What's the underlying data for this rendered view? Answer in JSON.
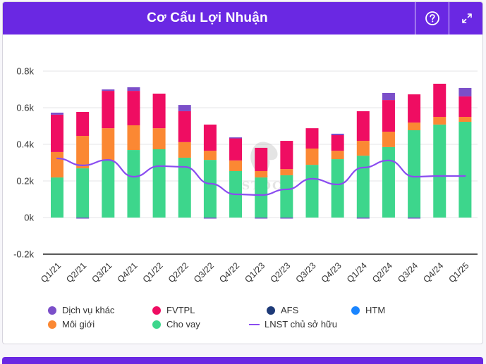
{
  "header": {
    "title": "Cơ Cấu Lợi Nhuận",
    "help_icon": "question-circle-icon",
    "expand_icon": "expand-arrows-icon"
  },
  "watermark": "SSTOCK",
  "chart_data": {
    "type": "bar",
    "stacked": true,
    "title": "Cơ Cấu Lợi Nhuận",
    "xlabel": "",
    "ylabel": "",
    "ylim": [
      -0.2,
      0.8
    ],
    "y_unit": "k",
    "yticks": [
      "-0.2k",
      "0k",
      "0.2k",
      "0.4k",
      "0.6k",
      "0.8k"
    ],
    "ytick_values": [
      -0.2,
      0,
      0.2,
      0.4,
      0.6,
      0.8
    ],
    "grid": true,
    "legend_position": "bottom",
    "categories": [
      "Q1/21",
      "Q2/21",
      "Q3/21",
      "Q4/21",
      "Q1/22",
      "Q2/22",
      "Q3/22",
      "Q4/22",
      "Q1/23",
      "Q2/23",
      "Q3/23",
      "Q4/23",
      "Q1/24",
      "Q2/24",
      "Q3/24",
      "Q4/24",
      "Q1/25"
    ],
    "series": [
      {
        "name": "Cho vay",
        "type": "bar",
        "color": "#3dd68c",
        "values": [
          0.219,
          0.269,
          0.312,
          0.369,
          0.373,
          0.327,
          0.315,
          0.254,
          0.219,
          0.231,
          0.288,
          0.319,
          0.338,
          0.385,
          0.477,
          0.508,
          0.523
        ]
      },
      {
        "name": "Môi giới",
        "type": "bar",
        "color": "#fb8833",
        "values": [
          0.139,
          0.177,
          0.176,
          0.135,
          0.115,
          0.085,
          0.05,
          0.058,
          0.035,
          0.034,
          0.089,
          0.046,
          0.081,
          0.084,
          0.042,
          0.042,
          0.027
        ]
      },
      {
        "name": "FVTPL",
        "type": "bar",
        "color": "#ef0d62",
        "values": [
          0.204,
          0.131,
          0.204,
          0.188,
          0.189,
          0.169,
          0.143,
          0.123,
          0.127,
          0.154,
          0.111,
          0.085,
          0.162,
          0.173,
          0.154,
          0.181,
          0.112
        ]
      },
      {
        "name": "AFS",
        "type": "bar",
        "color": "#1e3a78",
        "values": [
          0,
          0,
          0,
          0,
          0,
          0,
          0,
          0,
          0,
          0,
          0,
          0,
          0,
          0,
          0,
          0,
          0
        ]
      },
      {
        "name": "HTM",
        "type": "bar",
        "color": "#1a85ff",
        "values": [
          0,
          0,
          0,
          0,
          0,
          0,
          0,
          0,
          0,
          0,
          0,
          0,
          0,
          0,
          0,
          0,
          0
        ]
      },
      {
        "name": "Dịch vụ khác",
        "type": "bar",
        "color": "#7b4fc9",
        "values": [
          0.011,
          -0.004,
          0.008,
          0.02,
          0,
          0.034,
          -0.004,
          0.003,
          -0.004,
          -0.004,
          0,
          0.008,
          -0.004,
          0.039,
          -0.004,
          0,
          0.046
        ]
      },
      {
        "name": "LNST chủ sở hữu",
        "type": "line",
        "color": "#8a4cf0",
        "values": [
          0.323,
          0.285,
          0.315,
          0.223,
          0.281,
          0.277,
          0.185,
          0.127,
          0.123,
          0.154,
          0.212,
          0.181,
          0.273,
          0.312,
          0.223,
          0.227,
          0.227
        ]
      }
    ]
  },
  "legend": [
    {
      "label": "Dịch vụ khác",
      "color": "#7b4fc9",
      "marker": "dot"
    },
    {
      "label": "FVTPL",
      "color": "#ef0d62",
      "marker": "dot"
    },
    {
      "label": "AFS",
      "color": "#1e3a78",
      "marker": "dot"
    },
    {
      "label": "HTM",
      "color": "#1a85ff",
      "marker": "dot"
    },
    {
      "label": "Môi giới",
      "color": "#fb8833",
      "marker": "dot"
    },
    {
      "label": "Cho vay",
      "color": "#3dd68c",
      "marker": "dot"
    },
    {
      "label": "LNST chủ sở hữu",
      "color": "#8a4cf0",
      "marker": "line"
    }
  ]
}
